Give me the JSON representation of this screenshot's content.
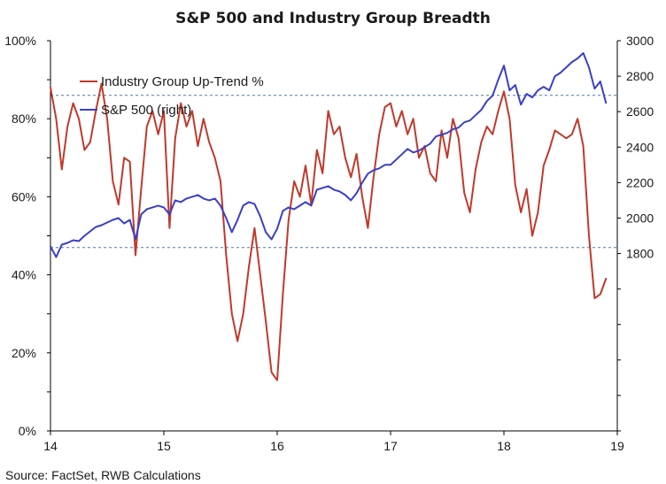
{
  "chart_data": {
    "type": "line",
    "title": "S&P 500 and Industry Group Breadth",
    "source": "Source: FactSet, RWB Calculations",
    "x_axis": {
      "range": [
        14,
        19
      ],
      "ticks": [
        "14",
        "15",
        "16",
        "17",
        "18",
        "19"
      ]
    },
    "y_left": {
      "range": [
        0,
        100
      ],
      "ticks": [
        "0%",
        "20%",
        "40%",
        "60%",
        "80%",
        "100%"
      ]
    },
    "y_right": {
      "range": [
        800,
        3000
      ],
      "ticks": [
        "1800",
        "2000",
        "2200",
        "2400",
        "2600",
        "2800",
        "3000"
      ]
    },
    "reference_lines": [
      86,
      47
    ],
    "legend_placement": "top-left",
    "series": [
      {
        "name": "Industry Group Up-Trend %",
        "axis": "left",
        "color": "#c0392b",
        "x": [
          14.0,
          14.05,
          14.1,
          14.15,
          14.2,
          14.25,
          14.3,
          14.35,
          14.4,
          14.45,
          14.5,
          14.55,
          14.6,
          14.65,
          14.7,
          14.75,
          14.8,
          14.85,
          14.9,
          14.95,
          15.0,
          15.05,
          15.1,
          15.15,
          15.2,
          15.25,
          15.3,
          15.35,
          15.4,
          15.45,
          15.5,
          15.55,
          15.6,
          15.65,
          15.7,
          15.75,
          15.8,
          15.85,
          15.9,
          15.95,
          16.0,
          16.05,
          16.1,
          16.15,
          16.2,
          16.25,
          16.3,
          16.35,
          16.4,
          16.45,
          16.5,
          16.55,
          16.6,
          16.65,
          16.7,
          16.75,
          16.8,
          16.85,
          16.9,
          16.95,
          17.0,
          17.05,
          17.1,
          17.15,
          17.2,
          17.25,
          17.3,
          17.35,
          17.4,
          17.45,
          17.5,
          17.55,
          17.6,
          17.65,
          17.7,
          17.75,
          17.8,
          17.85,
          17.9,
          17.95,
          18.0,
          18.05,
          18.1,
          18.15,
          18.2,
          18.25,
          18.3,
          18.35,
          18.4,
          18.45,
          18.5,
          18.55,
          18.6,
          18.65,
          18.7,
          18.75,
          18.8,
          18.85,
          18.9
        ],
        "y": [
          88,
          80,
          67,
          78,
          84,
          80,
          72,
          74,
          82,
          89,
          80,
          64,
          58,
          70,
          69,
          45,
          62,
          78,
          82,
          76,
          82,
          52,
          75,
          84,
          78,
          82,
          73,
          80,
          74,
          70,
          64,
          45,
          30,
          23,
          30,
          42,
          52,
          40,
          28,
          15,
          13,
          35,
          54,
          64,
          60,
          68,
          58,
          72,
          66,
          82,
          76,
          78,
          70,
          65,
          71,
          60,
          52,
          65,
          76,
          83,
          84,
          78,
          82,
          76,
          80,
          70,
          73,
          66,
          64,
          77,
          70,
          80,
          75,
          61,
          56,
          67,
          74,
          78,
          76,
          82,
          87,
          80,
          63,
          56,
          62,
          50,
          56,
          68,
          72,
          77,
          76,
          75,
          76,
          80,
          73,
          50,
          34,
          35,
          39
        ]
      },
      {
        "name": "S&P 500 (right)",
        "axis": "right",
        "color": "#3a3fc8",
        "x": [
          14.0,
          14.05,
          14.1,
          14.15,
          14.2,
          14.25,
          14.3,
          14.35,
          14.4,
          14.45,
          14.5,
          14.55,
          14.6,
          14.65,
          14.7,
          14.75,
          14.8,
          14.85,
          14.9,
          14.95,
          15.0,
          15.05,
          15.1,
          15.15,
          15.2,
          15.25,
          15.3,
          15.35,
          15.4,
          15.45,
          15.5,
          15.55,
          15.6,
          15.65,
          15.7,
          15.75,
          15.8,
          15.85,
          15.9,
          15.95,
          16.0,
          16.05,
          16.1,
          16.15,
          16.2,
          16.25,
          16.3,
          16.35,
          16.4,
          16.45,
          16.5,
          16.55,
          16.6,
          16.65,
          16.7,
          16.75,
          16.8,
          16.85,
          16.9,
          16.95,
          17.0,
          17.05,
          17.1,
          17.15,
          17.2,
          17.25,
          17.3,
          17.35,
          17.4,
          17.45,
          17.5,
          17.55,
          17.6,
          17.65,
          17.7,
          17.75,
          17.8,
          17.85,
          17.9,
          17.95,
          18.0,
          18.05,
          18.1,
          18.15,
          18.2,
          18.25,
          18.3,
          18.35,
          18.4,
          18.45,
          18.5,
          18.55,
          18.6,
          18.65,
          18.7,
          18.75,
          18.8,
          18.85,
          18.9
        ],
        "y": [
          1840,
          1780,
          1850,
          1860,
          1875,
          1870,
          1900,
          1925,
          1950,
          1960,
          1975,
          1990,
          2000,
          1970,
          1990,
          1880,
          2020,
          2050,
          2060,
          2070,
          2060,
          2020,
          2100,
          2090,
          2110,
          2120,
          2130,
          2110,
          2100,
          2110,
          2070,
          2000,
          1920,
          1990,
          2070,
          2090,
          2080,
          2010,
          1920,
          1880,
          1940,
          2040,
          2060,
          2050,
          2070,
          2090,
          2070,
          2160,
          2170,
          2180,
          2160,
          2150,
          2130,
          2100,
          2140,
          2200,
          2250,
          2270,
          2280,
          2300,
          2300,
          2330,
          2360,
          2390,
          2370,
          2380,
          2400,
          2420,
          2460,
          2470,
          2480,
          2500,
          2510,
          2540,
          2550,
          2580,
          2610,
          2660,
          2690,
          2780,
          2860,
          2720,
          2750,
          2640,
          2700,
          2680,
          2720,
          2740,
          2720,
          2800,
          2820,
          2850,
          2880,
          2900,
          2930,
          2850,
          2730,
          2770,
          2650
        ]
      }
    ]
  }
}
